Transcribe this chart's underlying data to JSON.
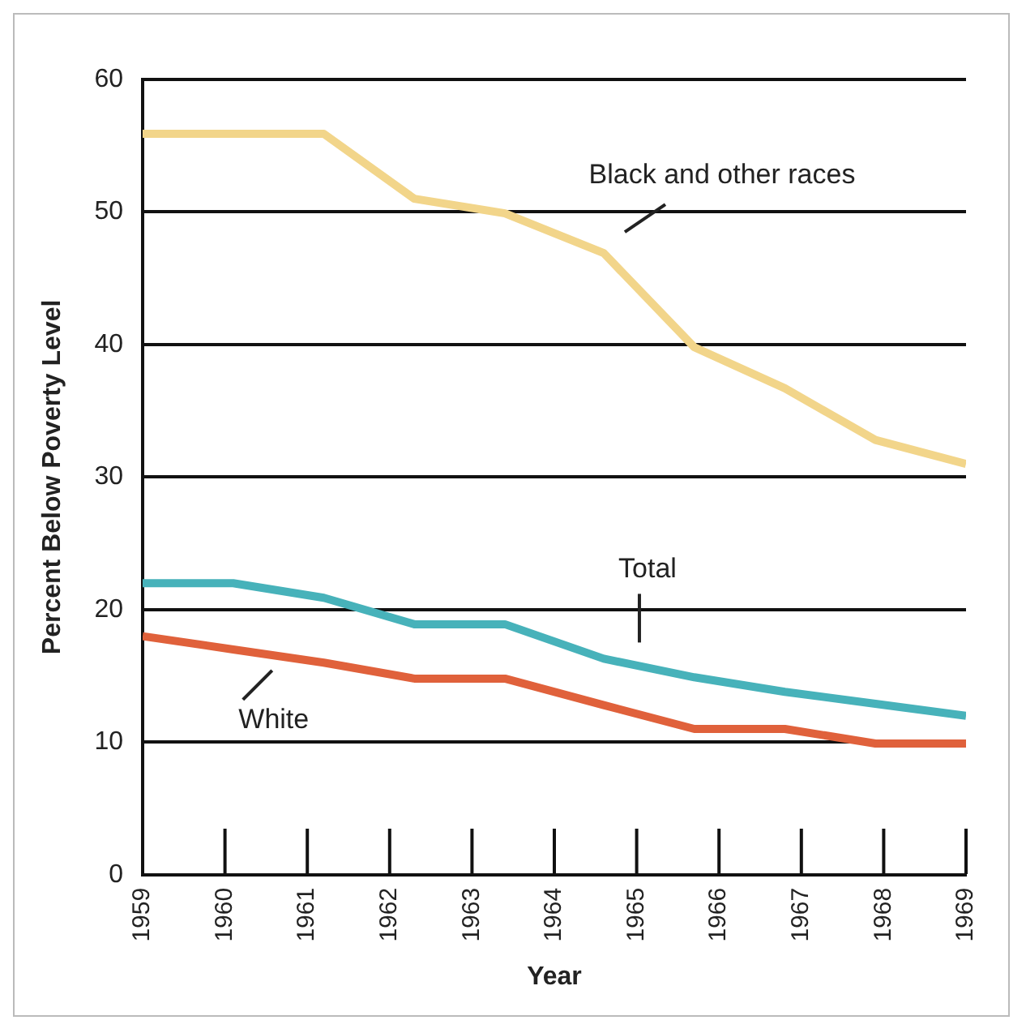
{
  "chart_data": {
    "type": "line",
    "xlabel": "Year",
    "ylabel": "Percent Below Poverty Level",
    "x": [
      1959,
      1960.1,
      1961.2,
      1962.3,
      1963.4,
      1964.6,
      1965.7,
      1966.8,
      1967.9,
      1969
    ],
    "series": [
      {
        "name": "Black and other races",
        "color": "#f2d58a",
        "values": [
          55.9,
          55.9,
          55.9,
          51.0,
          49.9,
          46.9,
          39.8,
          36.7,
          32.8,
          31.0
        ]
      },
      {
        "name": "Total",
        "color": "#47b2ba",
        "values": [
          22.0,
          22.0,
          20.9,
          18.9,
          18.9,
          16.3,
          14.9,
          13.8,
          12.9,
          12.0
        ]
      },
      {
        "name": "White",
        "color": "#e0613b",
        "values": [
          18.0,
          17.0,
          16.0,
          14.8,
          14.8,
          12.8,
          11.0,
          11.0,
          9.9,
          9.9
        ]
      }
    ],
    "xlim": [
      1959,
      1969
    ],
    "xticks": [
      1959,
      1960,
      1961,
      1962,
      1963,
      1964,
      1965,
      1966,
      1967,
      1968,
      1969
    ],
    "ylim": [
      0,
      60
    ],
    "yticks": [
      0,
      10,
      20,
      30,
      40,
      50,
      60
    ],
    "grid": "y",
    "legend": false,
    "marker": "none",
    "line_style": "solid"
  }
}
